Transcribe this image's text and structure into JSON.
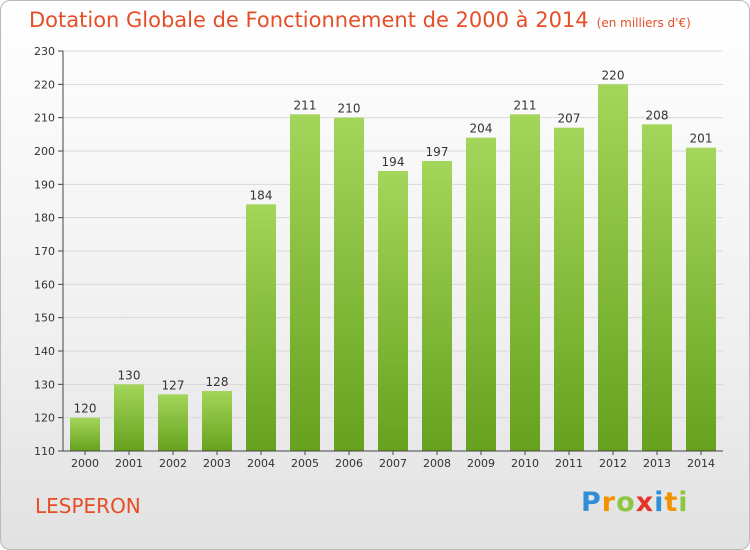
{
  "title": "Dotation Globale de Fonctionnement de 2000 à 2014",
  "subtitle": "(en milliers d'€)",
  "commune": "LESPERON",
  "logo": {
    "text": "Proxiti",
    "letters": [
      "P",
      "r",
      "o",
      "x",
      "i",
      "t",
      "i"
    ],
    "colors": [
      "#2e8fd6",
      "#f39200",
      "#8dc63f",
      "#e5332a",
      "#2e8fd6",
      "#f39200",
      "#8dc63f"
    ]
  },
  "chart_data": {
    "type": "bar",
    "categories": [
      "2000",
      "2001",
      "2002",
      "2003",
      "2004",
      "2005",
      "2006",
      "2007",
      "2008",
      "2009",
      "2010",
      "2011",
      "2012",
      "2013",
      "2014"
    ],
    "values": [
      120,
      130,
      127,
      128,
      184,
      211,
      210,
      194,
      197,
      204,
      211,
      207,
      220,
      208,
      201
    ],
    "ylim": [
      110,
      230
    ],
    "yticks": [
      110,
      120,
      130,
      140,
      150,
      160,
      170,
      180,
      190,
      200,
      210,
      220,
      230
    ],
    "grid": true,
    "bar_color_top": "#a3d65a",
    "bar_color_bottom": "#66a11e"
  }
}
